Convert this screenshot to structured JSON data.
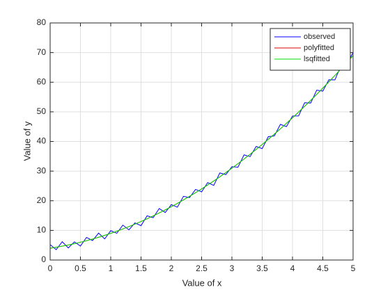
{
  "chart_data": {
    "type": "line",
    "xlabel": "Value of x",
    "ylabel": "Value of y",
    "x": [
      0,
      0.1,
      0.2,
      0.3,
      0.4,
      0.5,
      0.6,
      0.7,
      0.8,
      0.9,
      1,
      1.1,
      1.2,
      1.3,
      1.4,
      1.5,
      1.6,
      1.7,
      1.8,
      1.9,
      2,
      2.1,
      2.2,
      2.3,
      2.4,
      2.5,
      2.6,
      2.7,
      2.8,
      2.9,
      3,
      3.1,
      3.2,
      3.3,
      3.4,
      3.5,
      3.6,
      3.7,
      3.8,
      3.9,
      4,
      4.1,
      4.2,
      4.3,
      4.4,
      4.5,
      4.6,
      4.7,
      4.8,
      4.9,
      5
    ],
    "series": [
      {
        "name": "observed",
        "color": "#0000ff",
        "values": [
          5.2,
          3.52,
          6.18,
          4.08,
          6.12,
          4.7,
          7.62,
          6.58,
          9.08,
          7.12,
          9.9,
          9.02,
          11.78,
          10.18,
          12.52,
          11.6,
          14.92,
          14.28,
          17.38,
          16.02,
          18.7,
          17.82,
          21.48,
          21.08,
          23.82,
          23,
          26.12,
          25.18,
          29.38,
          28.82,
          31.5,
          31.32,
          35.48,
          34.88,
          38.32,
          37.6,
          41.62,
          41.88,
          45.78,
          45.02,
          48.6,
          48.62,
          53.08,
          52.98,
          57.32,
          57,
          60.82,
          60.78,
          65.58,
          66.22,
          70
        ]
      },
      {
        "name": "polyfitted",
        "color": "#d40000",
        "values": [
          4,
          4.32,
          4.68,
          5.08,
          5.52,
          6,
          6.52,
          7.08,
          7.68,
          8.32,
          9,
          9.72,
          10.48,
          11.28,
          12.12,
          13,
          13.92,
          14.88,
          15.88,
          16.92,
          18,
          19.12,
          20.28,
          21.48,
          22.72,
          24,
          25.32,
          26.68,
          28.08,
          29.52,
          31,
          32.52,
          34.08,
          35.68,
          37.32,
          39,
          40.72,
          42.48,
          44.28,
          46.12,
          48,
          49.92,
          51.88,
          53.88,
          55.92,
          58,
          60.12,
          62.28,
          64.48,
          66.72,
          69
        ]
      },
      {
        "name": "lsqfitted",
        "color": "#00dd00",
        "values": [
          4,
          4.32,
          4.68,
          5.08,
          5.52,
          6,
          6.52,
          7.08,
          7.68,
          8.32,
          9,
          9.72,
          10.48,
          11.28,
          12.12,
          13,
          13.92,
          14.88,
          15.88,
          16.92,
          18,
          19.12,
          20.28,
          21.48,
          22.72,
          24,
          25.32,
          26.68,
          28.08,
          29.52,
          31,
          32.52,
          34.08,
          35.68,
          37.32,
          39,
          40.72,
          42.48,
          44.28,
          46.12,
          48,
          49.92,
          51.88,
          53.88,
          55.92,
          58,
          60.12,
          62.28,
          64.48,
          66.72,
          69
        ]
      }
    ],
    "xlim": [
      0,
      5
    ],
    "xticks": [
      0,
      0.5,
      1,
      1.5,
      2,
      2.5,
      3,
      3.5,
      4,
      4.5,
      5
    ],
    "ylim": [
      0,
      80
    ],
    "yticks": [
      0,
      10,
      20,
      30,
      40,
      50,
      60,
      70,
      80
    ],
    "grid": true,
    "legend": "northeast"
  }
}
